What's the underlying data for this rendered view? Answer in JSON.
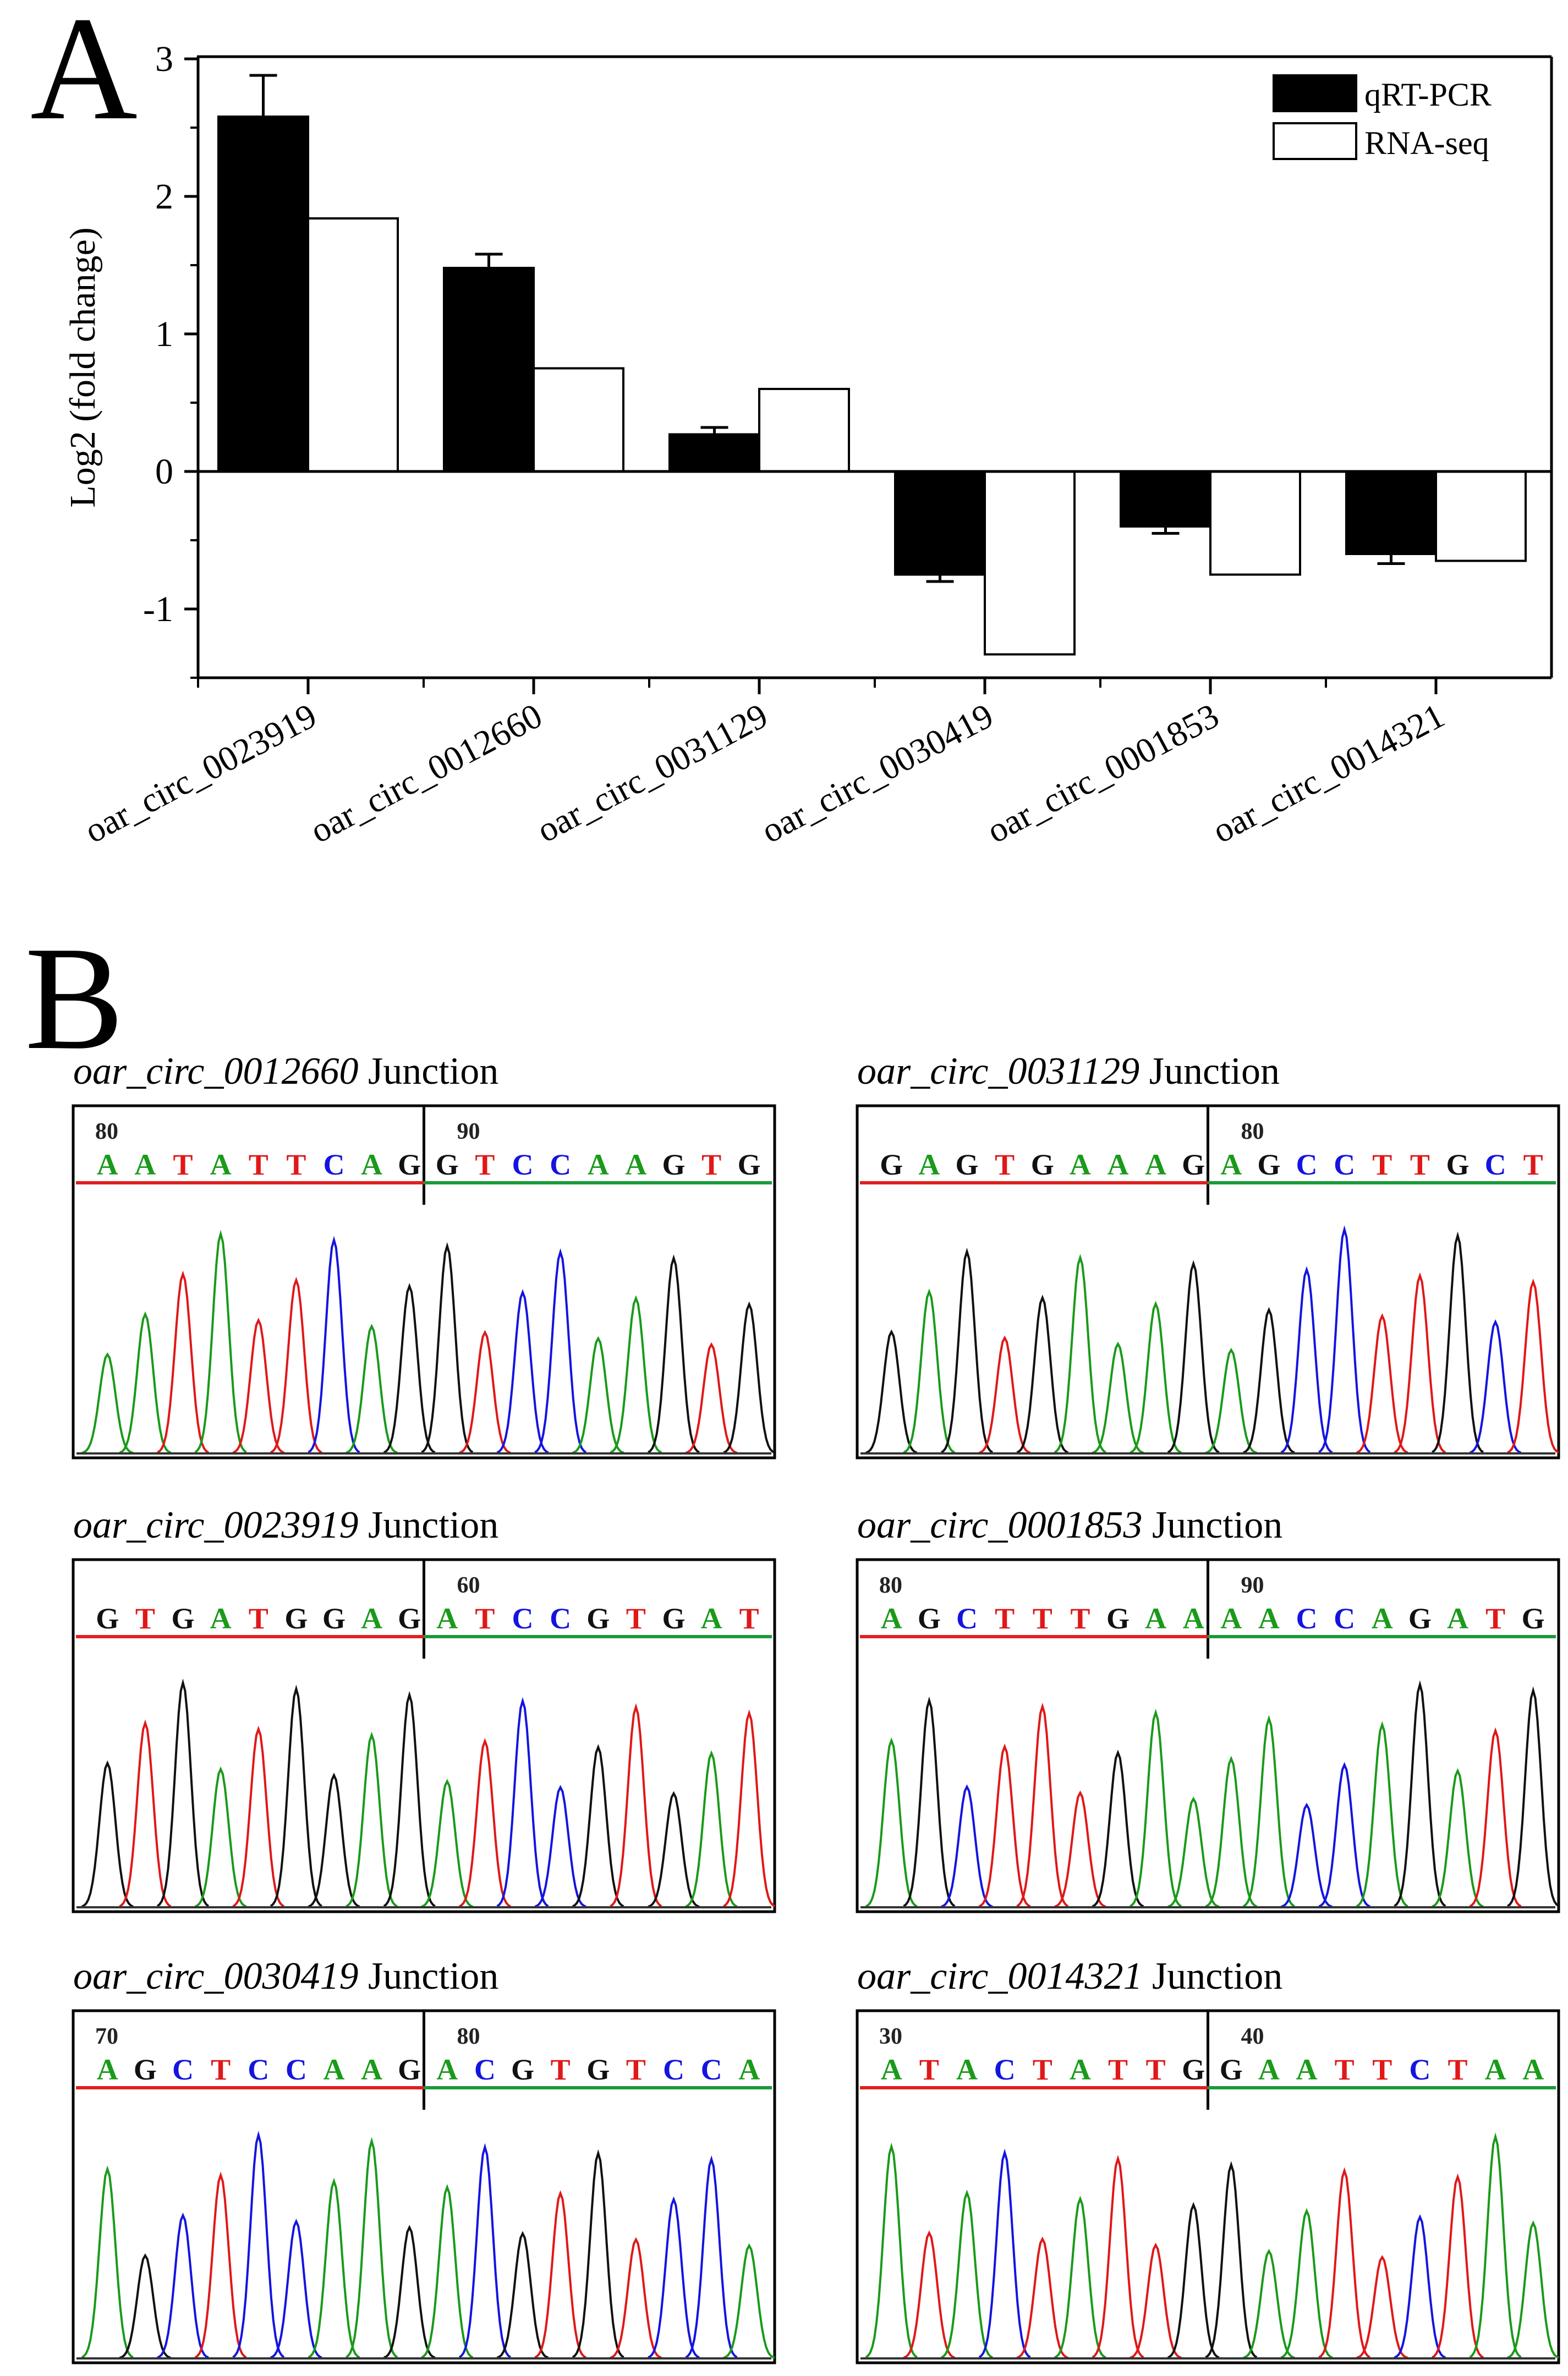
{
  "figure": {
    "panel_a_letter": "A",
    "panel_b_letter": "B"
  },
  "chart_data": {
    "type": "bar",
    "ylabel": "Log2 (fold change)",
    "xlabel": "",
    "ylim": [
      -1.5,
      3
    ],
    "yticks": [
      -1,
      0,
      1,
      2,
      3
    ],
    "ytick_labels": [
      "-1",
      "0",
      "1",
      "2",
      "3"
    ],
    "legend_position": "top-right",
    "categories": [
      "oar_circ_0023919",
      "oar_circ_0012660",
      "oar_circ_0031129",
      "oar_circ_0030419",
      "oar_circ_0001853",
      "oar_circ_0014321"
    ],
    "series": [
      {
        "name": "qRT-PCR",
        "color": "#000000",
        "values": [
          2.58,
          1.48,
          0.27,
          -0.75,
          -0.4,
          -0.6
        ],
        "errors": [
          0.3,
          0.1,
          0.05,
          0.05,
          0.05,
          0.07
        ]
      },
      {
        "name": "RNA-seq",
        "color": "#ffffff",
        "values": [
          1.84,
          0.75,
          0.6,
          -1.33,
          -0.75,
          -0.65
        ]
      }
    ]
  },
  "colors": {
    "A": "#1a9a1a",
    "C": "#1414e0",
    "G": "#111111",
    "T": "#e01818",
    "left_underline": "#e02020",
    "right_underline": "#1a9a3a"
  },
  "junction_label": "Junction",
  "traces": [
    {
      "name": "oar_circ_0012660",
      "left": [
        "A",
        "A",
        "T",
        "A",
        "T",
        "T",
        "C",
        "A",
        "G"
      ],
      "right": [
        "G",
        "T",
        "C",
        "C",
        "A",
        "A",
        "G",
        "T",
        "G"
      ],
      "number_left": "80",
      "number_right": "90"
    },
    {
      "name": "oar_circ_0031129",
      "left": [
        "G",
        "A",
        "G",
        "T",
        "G",
        "A",
        "A",
        "A",
        "G"
      ],
      "right": [
        "A",
        "G",
        "C",
        "C",
        "T",
        "T",
        "G",
        "C",
        "T"
      ],
      "number_left": "",
      "number_right": "80"
    },
    {
      "name": "oar_circ_0023919",
      "left": [
        "G",
        "T",
        "G",
        "A",
        "T",
        "G",
        "G",
        "A",
        "G"
      ],
      "right": [
        "A",
        "T",
        "C",
        "C",
        "G",
        "T",
        "G",
        "A",
        "T"
      ],
      "number_left": "",
      "number_right": "60"
    },
    {
      "name": "oar_circ_0001853",
      "left": [
        "A",
        "G",
        "C",
        "T",
        "T",
        "T",
        "G",
        "A",
        "A"
      ],
      "right": [
        "A",
        "A",
        "C",
        "C",
        "A",
        "G",
        "A",
        "T",
        "G"
      ],
      "number_left": "80",
      "number_right": "90"
    },
    {
      "name": "oar_circ_0030419",
      "left": [
        "A",
        "G",
        "C",
        "T",
        "C",
        "C",
        "A",
        "A",
        "G"
      ],
      "right": [
        "A",
        "C",
        "G",
        "T",
        "G",
        "T",
        "C",
        "C",
        "A"
      ],
      "number_left": "70",
      "number_right": "80"
    },
    {
      "name": "oar_circ_0014321",
      "left": [
        "A",
        "T",
        "A",
        "C",
        "T",
        "A",
        "T",
        "T",
        "G"
      ],
      "right": [
        "G",
        "A",
        "A",
        "T",
        "T",
        "C",
        "T",
        "A",
        "A"
      ],
      "number_left": "30",
      "number_right": "40"
    }
  ]
}
